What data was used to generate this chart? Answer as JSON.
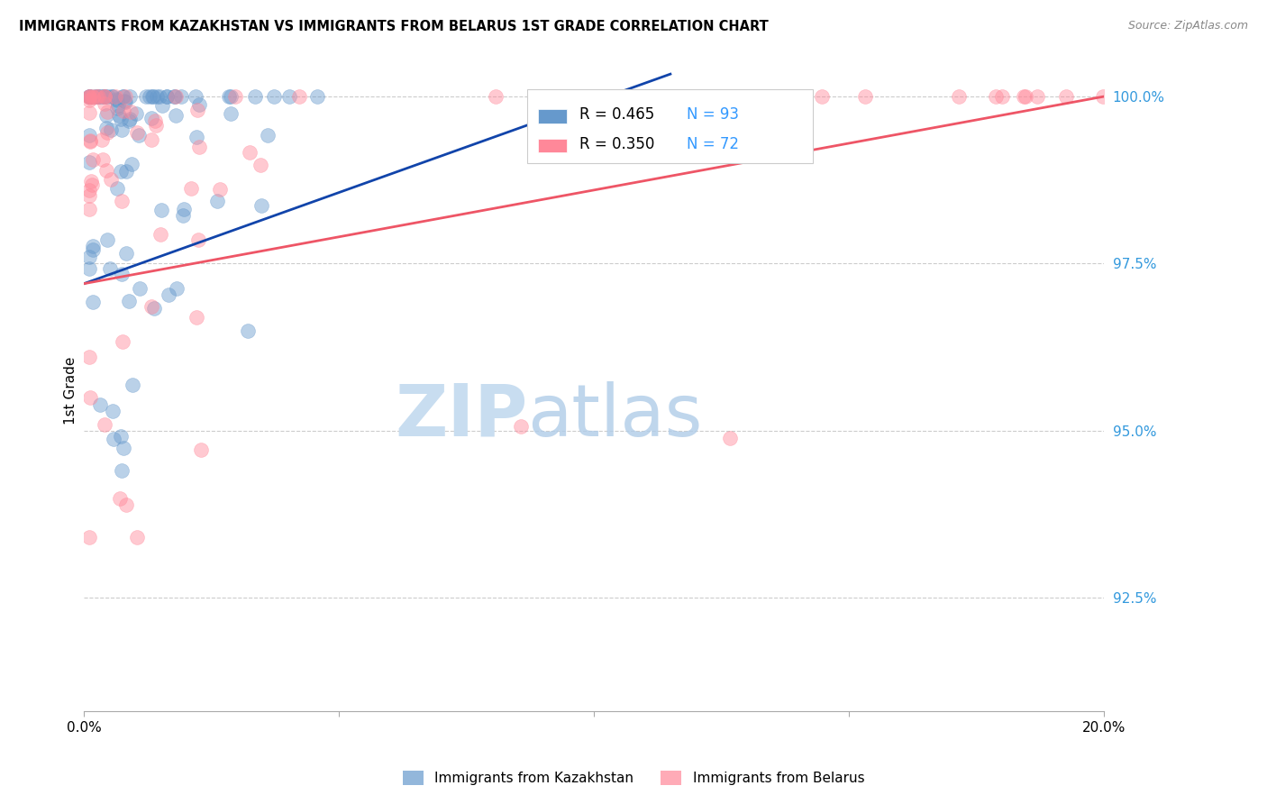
{
  "title": "IMMIGRANTS FROM KAZAKHSTAN VS IMMIGRANTS FROM BELARUS 1ST GRADE CORRELATION CHART",
  "source": "Source: ZipAtlas.com",
  "ylabel": "1st Grade",
  "ylabel_right_labels": [
    "100.0%",
    "97.5%",
    "95.0%",
    "92.5%"
  ],
  "ylabel_right_values": [
    1.0,
    0.975,
    0.95,
    0.925
  ],
  "xlim": [
    0.0,
    0.2
  ],
  "ylim": [
    0.908,
    1.004
  ],
  "color_kaz": "#6699CC",
  "color_bel": "#FF8899",
  "color_kaz_line": "#1144AA",
  "color_bel_line": "#EE5566",
  "kaz_R": 0.465,
  "kaz_N": 93,
  "bel_R": 0.35,
  "bel_N": 72,
  "grid_color": "#CCCCCC",
  "background_color": "#FFFFFF",
  "legend_R_color": "#000000",
  "legend_N_color": "#3399FF"
}
